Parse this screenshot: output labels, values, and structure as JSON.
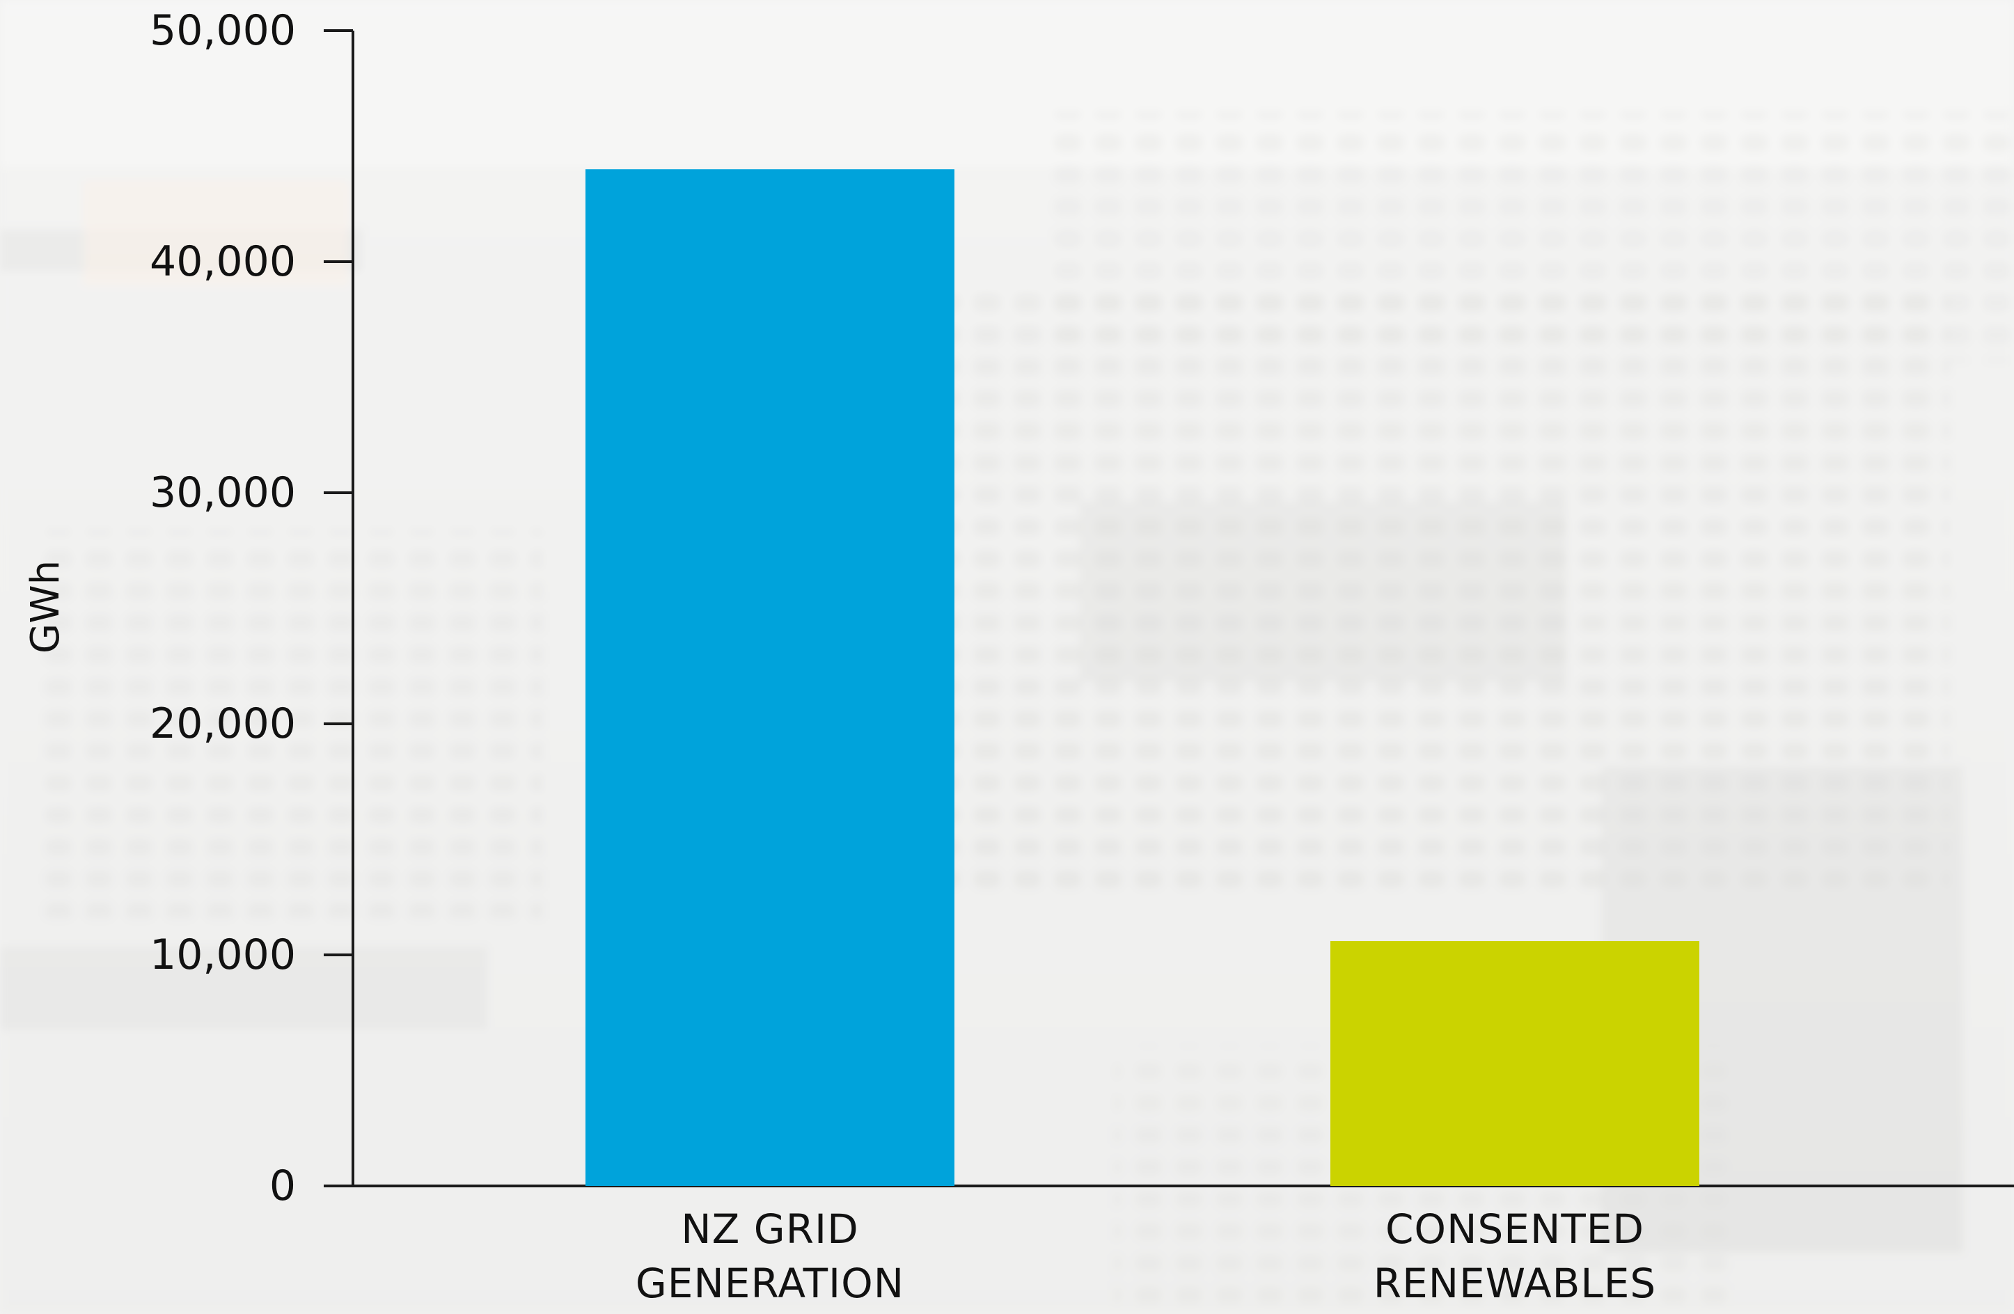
{
  "chart_data": {
    "type": "bar",
    "title": "",
    "xlabel": "",
    "ylabel": "GWh",
    "ylim": [
      0,
      50000
    ],
    "yticks": [
      0,
      10000,
      20000,
      30000,
      40000,
      50000
    ],
    "ytick_labels": [
      "0",
      "10,000",
      "20,000",
      "30,000",
      "40,000",
      "50,000"
    ],
    "categories": [
      [
        "NZ GRID",
        "GENERATION"
      ],
      [
        "CONSENTED",
        "RENEWABLES"
      ]
    ],
    "values": [
      44000,
      10600
    ],
    "colors": [
      "#00a3db",
      "#cbd300"
    ],
    "grid": false,
    "legend": "none"
  },
  "colors": {
    "axis": "#1a1a1a",
    "background": "#f2f2f1"
  },
  "background_image": "faded-circuit-board-photo"
}
